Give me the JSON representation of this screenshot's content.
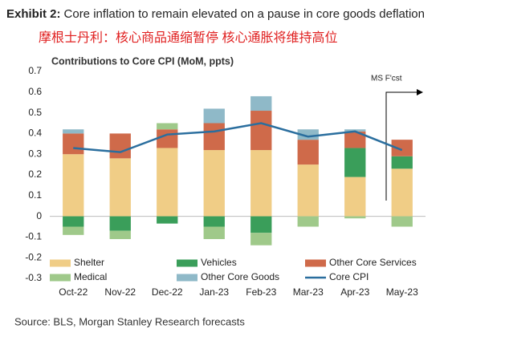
{
  "exhibit": "Exhibit 2:",
  "title": "Core inflation to remain elevated on a pause in core goods deflation",
  "subtitle": "摩根士丹利：核心商品通缩暂停 核心通胀将维持高位",
  "source": "Source: BLS, Morgan Stanley Research forecasts",
  "chart_data": {
    "type": "stacked_bar_line",
    "title": "Contributions  to Core CPI (MoM, ppts)",
    "annotation": "MS F'cst",
    "categories": [
      "Oct-22",
      "Nov-22",
      "Dec-22",
      "Jan-23",
      "Feb-23",
      "Mar-23",
      "Apr-23",
      "May-23"
    ],
    "ylim": [
      -0.3,
      0.7
    ],
    "yticks": [
      -0.3,
      -0.2,
      -0.1,
      0,
      0.1,
      0.2,
      0.3,
      0.4,
      0.5,
      0.6,
      0.7
    ],
    "series": [
      {
        "name": "Shelter",
        "color": "#f0cd86",
        "values": [
          0.3,
          0.28,
          0.33,
          0.32,
          0.32,
          0.25,
          0.19,
          0.23
        ]
      },
      {
        "name": "Vehicles",
        "color": "#3a9e5a",
        "values": [
          -0.05,
          -0.07,
          -0.035,
          -0.05,
          -0.08,
          null,
          0.14,
          0.06
        ]
      },
      {
        "name": "Other Core Services",
        "color": "#cf6a4a",
        "values": [
          0.1,
          0.12,
          0.09,
          0.13,
          0.19,
          0.12,
          0.08,
          0.08
        ]
      },
      {
        "name": "Medical",
        "color": "#9fc98a",
        "values": [
          -0.04,
          -0.04,
          0.03,
          -0.06,
          -0.06,
          -0.05,
          -0.01,
          -0.05
        ]
      },
      {
        "name": "Other Core Goods",
        "color": "#8fb9c8",
        "values": [
          0.02,
          null,
          null,
          0.07,
          0.07,
          0.05,
          0.01,
          null
        ]
      },
      {
        "name": "Core CPI",
        "type": "line",
        "color": "#2a6e9e",
        "values": [
          0.33,
          0.31,
          0.395,
          0.41,
          0.45,
          0.385,
          0.41,
          0.32
        ]
      }
    ]
  }
}
